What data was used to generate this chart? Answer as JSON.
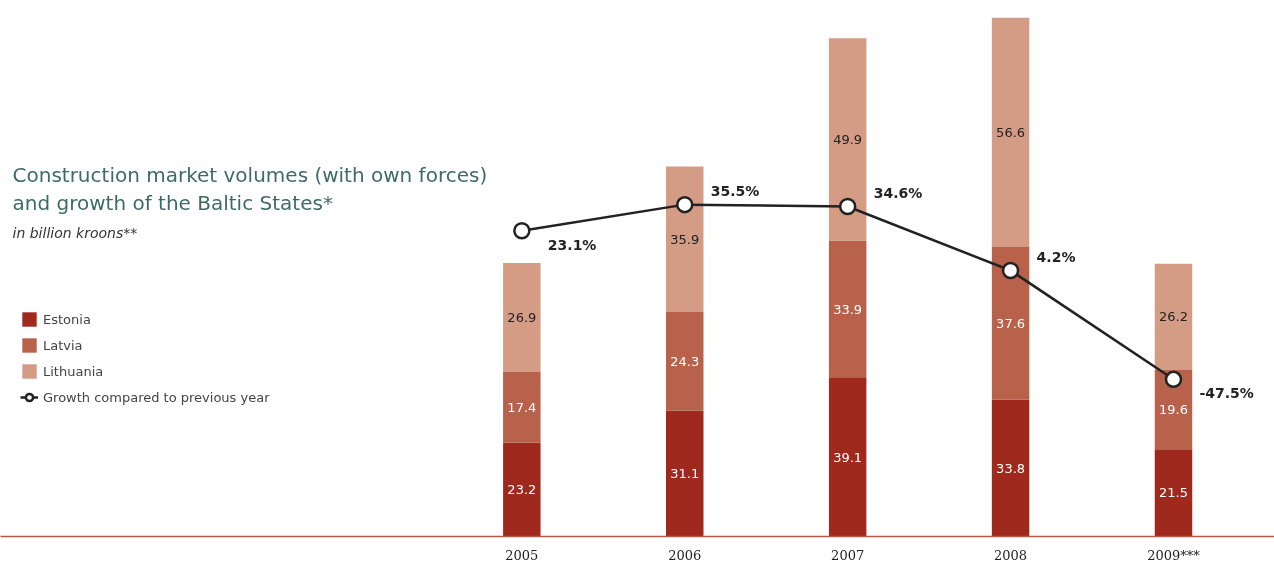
{
  "chart_data": {
    "type": "bar",
    "stacked": true,
    "title": "Construction  market volumes (with own forces)\n and growth of the Baltic States*",
    "subtitle": "in billion kroons**",
    "categories": [
      "2005",
      "2006",
      "2007",
      "2008",
      "2009***"
    ],
    "series": [
      {
        "name": "Estonia",
        "color": "#a0291e",
        "values": [
          23.2,
          31.1,
          39.1,
          33.8,
          21.5
        ]
      },
      {
        "name": "Latvia",
        "color": "#b8614b",
        "values": [
          17.4,
          24.3,
          33.9,
          37.6,
          19.6
        ]
      },
      {
        "name": "Lithuania",
        "color": "#d49b85",
        "values": [
          26.9,
          35.9,
          49.9,
          56.6,
          26.2
        ]
      },
      {
        "name": "Growth compared to previous year",
        "type": "line",
        "axis": "y2",
        "color": "#222222",
        "marker": "circle",
        "values": [
          23.1,
          35.5,
          34.6,
          4.2,
          -47.5
        ],
        "value_labels": [
          "23.1%",
          "35.5%",
          "34.6%",
          "4.2%",
          "-47.5%"
        ]
      }
    ],
    "data_labels": true,
    "legend": "left",
    "grid": false
  }
}
